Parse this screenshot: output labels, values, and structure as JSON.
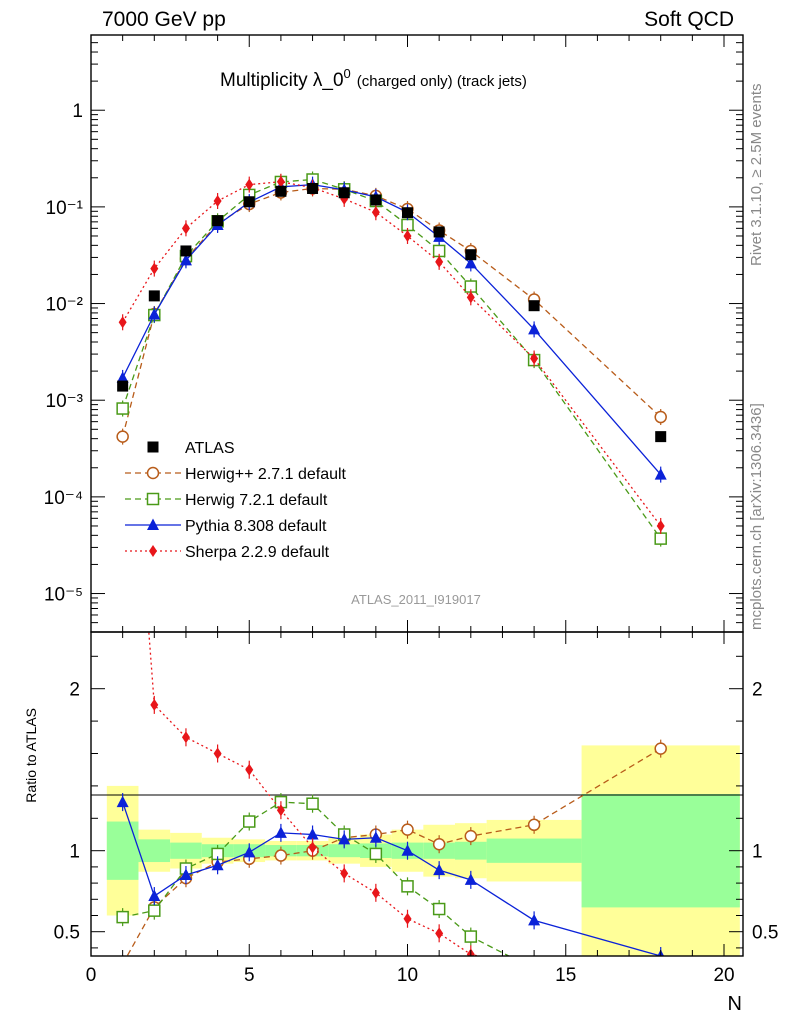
{
  "header": {
    "left": "7000 GeV pp",
    "right": "Soft QCD"
  },
  "side_labels": {
    "rivet": "Rivet 3.1.10, ≥ 2.5M events",
    "mcplots": "mcplots.cern.ch [arXiv:1306.3436]"
  },
  "chart_data": {
    "type": "scatter",
    "title_main": "Multiplicity λ_0",
    "title_sup": "0",
    "title_extra": "(charged only) (track jets)",
    "watermark": "ATLAS_2011_I919017",
    "xlabel": "N",
    "ylabel_ratio": "Ratio to ATLAS",
    "xlim": [
      0,
      20.6
    ],
    "ylim_main": [
      4e-06,
      6
    ],
    "yscale_main": "log",
    "ylim_ratio": [
      0.35,
      2.35
    ],
    "x_ticks": [
      "0",
      "5",
      "10",
      "15",
      "20"
    ],
    "y_ticks_main": [
      "10⁻⁵",
      "10⁻⁴",
      "10⁻³",
      "10⁻²",
      "10⁻¹",
      "1"
    ],
    "y_ticks_ratio": [
      "0.5",
      "1",
      "2"
    ],
    "legend_position": "bottom-left",
    "x": [
      1,
      2,
      3,
      4,
      5,
      6,
      7,
      8,
      9,
      10,
      11,
      12,
      14,
      18
    ],
    "bin_edges": [
      0.5,
      1.5,
      2.5,
      3.5,
      4.5,
      5.5,
      6.5,
      7.5,
      8.5,
      9.5,
      10.5,
      11.5,
      12.5,
      15.5,
      20.5
    ],
    "data": {
      "name": "ATLAS",
      "values": [
        0.0014,
        0.012,
        0.035,
        0.072,
        0.113,
        0.145,
        0.155,
        0.14,
        0.118,
        0.087,
        0.055,
        0.032,
        0.0095,
        0.00042
      ]
    },
    "band_inner": [
      0.18,
      0.07,
      0.05,
      0.04,
      0.04,
      0.035,
      0.035,
      0.04,
      0.045,
      0.05,
      0.05,
      0.055,
      0.075,
      0.35
    ],
    "band_outer": [
      0.4,
      0.13,
      0.11,
      0.08,
      0.07,
      0.06,
      0.06,
      0.08,
      0.1,
      0.13,
      0.16,
      0.17,
      0.19,
      0.65
    ],
    "series": [
      {
        "name": "Herwig++ 2.7.1 default",
        "color": "#b85c1a",
        "marker": "circle-open",
        "dash": "6,4",
        "values": [
          0.00042,
          0.0078,
          0.029,
          0.067,
          0.107,
          0.141,
          0.155,
          0.152,
          0.13,
          0.095,
          0.057,
          0.035,
          0.011,
          0.00067
        ],
        "ratio": [
          0.3,
          0.65,
          0.83,
          0.93,
          0.95,
          0.97,
          1.0,
          1.08,
          1.1,
          1.13,
          1.04,
          1.09,
          1.16,
          1.63
        ]
      },
      {
        "name": "Herwig 7.2.1 default",
        "color": "#4a9a18",
        "marker": "square-open",
        "dash": "6,4",
        "values": [
          0.00082,
          0.0076,
          0.031,
          0.071,
          0.133,
          0.181,
          0.192,
          0.152,
          0.115,
          0.065,
          0.035,
          0.015,
          0.0026,
          3.7e-05
        ],
        "ratio": [
          0.59,
          0.63,
          0.89,
          0.98,
          1.18,
          1.3,
          1.29,
          1.1,
          0.98,
          0.78,
          0.64,
          0.47,
          0.27,
          0.088
        ]
      },
      {
        "name": "Pythia 8.308 default",
        "color": "#0b22d8",
        "marker": "triangle",
        "dash": "",
        "values": [
          0.0017,
          0.0077,
          0.028,
          0.065,
          0.112,
          0.161,
          0.17,
          0.15,
          0.127,
          0.088,
          0.049,
          0.026,
          0.0054,
          0.00017
        ],
        "ratio": [
          1.3,
          0.72,
          0.85,
          0.91,
          0.99,
          1.11,
          1.1,
          1.07,
          1.08,
          1.0,
          0.88,
          0.82,
          0.57,
          0.35
        ]
      },
      {
        "name": "Sherpa 2.2.9 default",
        "color": "#e8161a",
        "marker": "diamond",
        "dash": "2,3",
        "values": [
          0.0064,
          0.023,
          0.06,
          0.115,
          0.17,
          0.182,
          0.158,
          0.121,
          0.088,
          0.05,
          0.027,
          0.0116,
          0.0027,
          5e-05
        ],
        "ratio": [
          4.5,
          1.9,
          1.7,
          1.6,
          1.5,
          1.25,
          1.02,
          0.86,
          0.74,
          0.58,
          0.49,
          0.36,
          0.28,
          0.12
        ]
      }
    ]
  }
}
